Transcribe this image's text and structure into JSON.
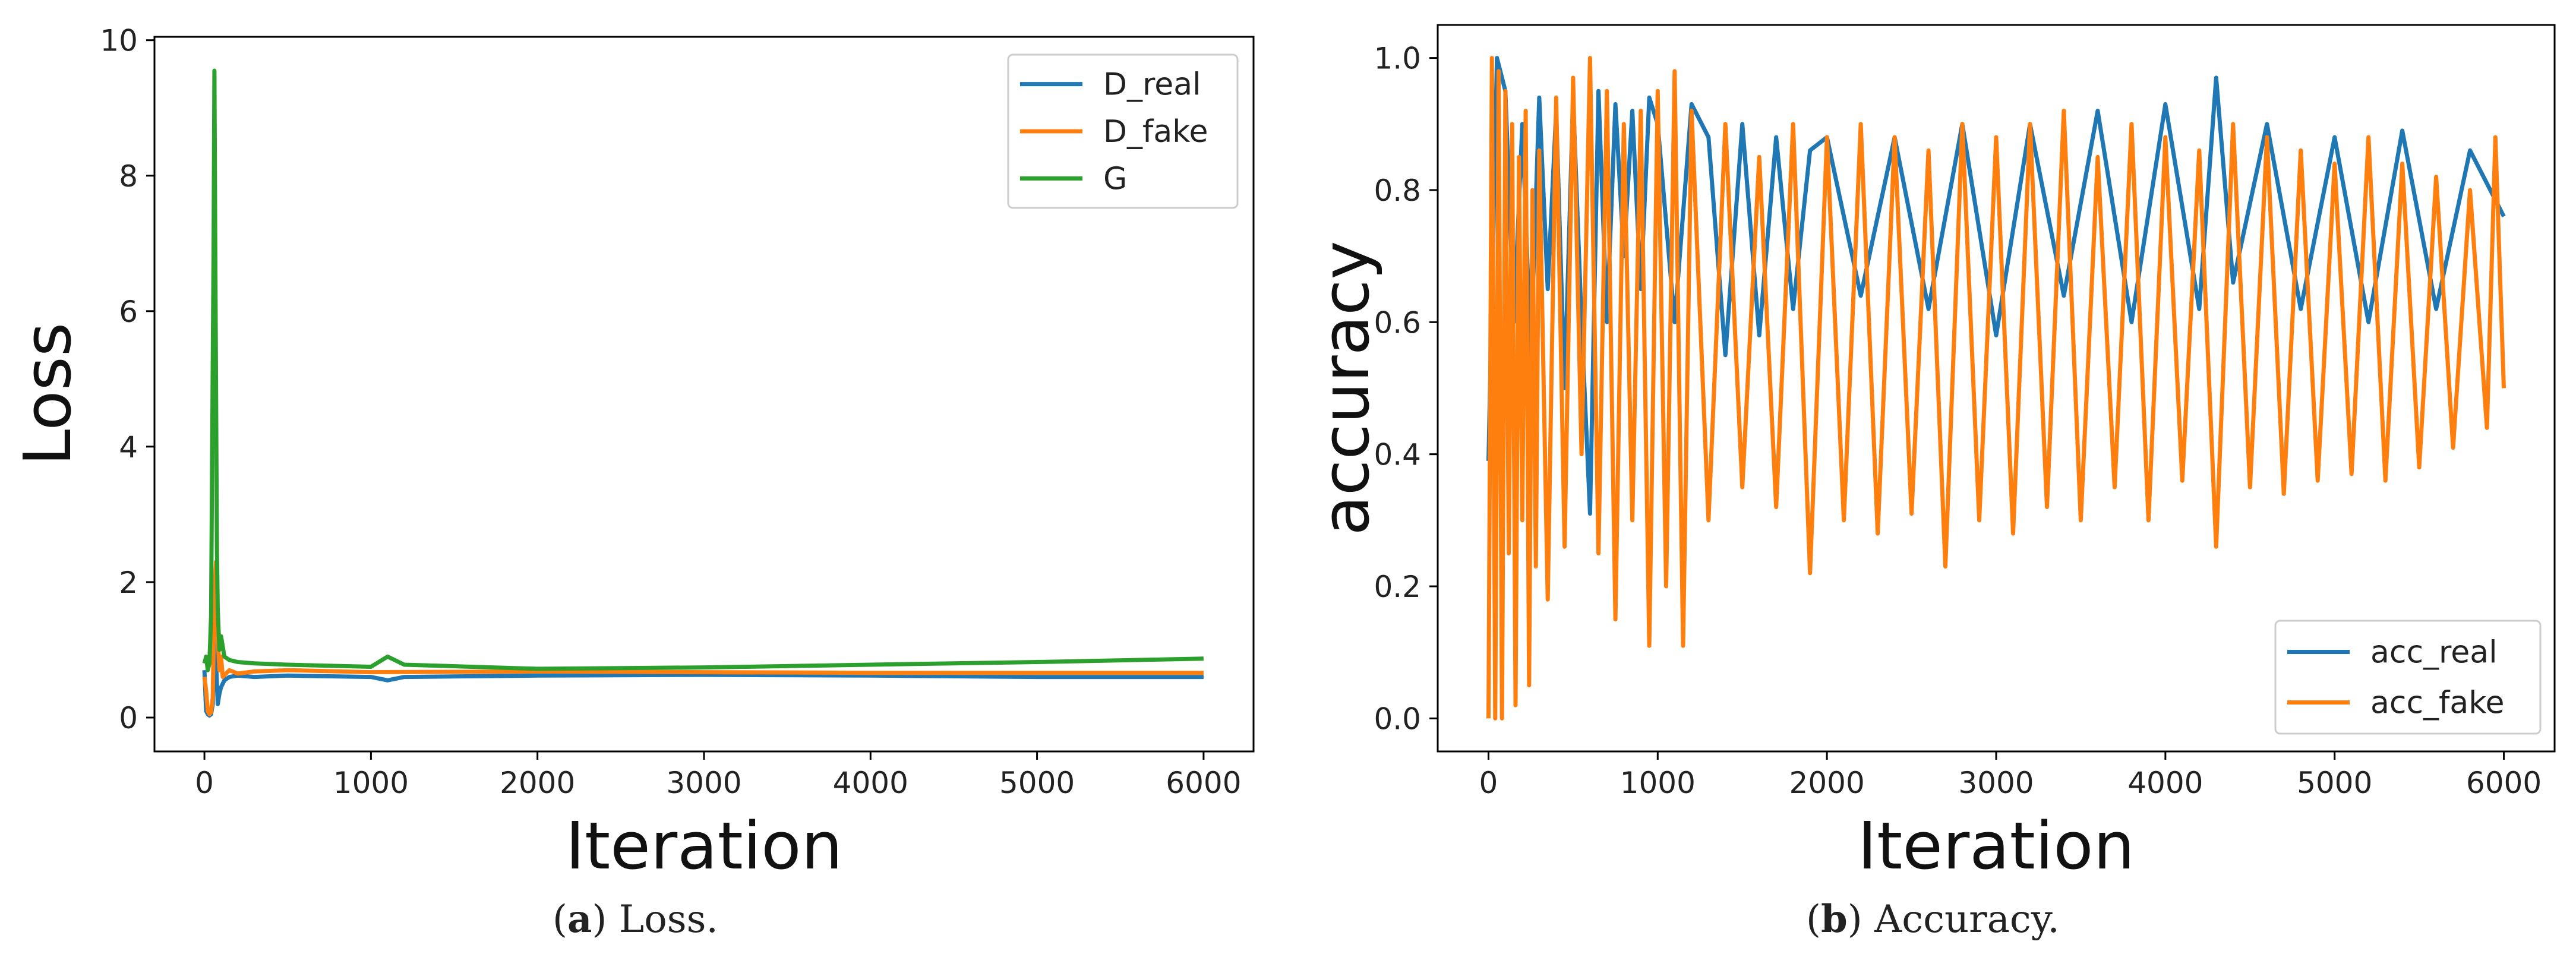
{
  "chart_data": [
    {
      "id": "loss",
      "type": "line",
      "xlabel": "Iteration",
      "ylabel": "Loss",
      "xlim": [
        -300,
        6300
      ],
      "ylim": [
        -0.5,
        10.05
      ],
      "xticks": [
        0,
        1000,
        2000,
        3000,
        4000,
        5000,
        6000
      ],
      "xtick_labels": [
        "0",
        "1000",
        "2000",
        "3000",
        "4000",
        "5000",
        "6000"
      ],
      "yticks": [
        0,
        2,
        4,
        6,
        8,
        10
      ],
      "ytick_labels": [
        "0",
        "2",
        "4",
        "6",
        "8",
        "10"
      ],
      "legend": "top-right",
      "series": [
        {
          "name": "D_real",
          "color": "#1f77b4",
          "x": [
            0,
            10,
            20,
            30,
            40,
            50,
            60,
            70,
            80,
            90,
            100,
            120,
            150,
            200,
            300,
            500,
            1000,
            1100,
            1200,
            2000,
            3000,
            4000,
            5000,
            6000
          ],
          "y": [
            0.7,
            0.1,
            0.05,
            0.03,
            0.05,
            0.2,
            1.2,
            0.8,
            0.2,
            0.35,
            0.45,
            0.55,
            0.6,
            0.62,
            0.6,
            0.62,
            0.6,
            0.55,
            0.6,
            0.62,
            0.63,
            0.62,
            0.6,
            0.6
          ]
        },
        {
          "name": "D_fake",
          "color": "#ff7f0e",
          "x": [
            0,
            10,
            20,
            30,
            40,
            50,
            60,
            70,
            80,
            90,
            100,
            110,
            150,
            200,
            300,
            500,
            1000,
            2000,
            3000,
            4000,
            5000,
            6000
          ],
          "y": [
            0.6,
            0.4,
            0.1,
            0.05,
            0.08,
            0.3,
            1.8,
            2.3,
            1.2,
            0.7,
            0.9,
            0.6,
            0.7,
            0.65,
            0.68,
            0.7,
            0.67,
            0.68,
            0.67,
            0.66,
            0.66,
            0.66
          ]
        },
        {
          "name": "G",
          "color": "#2ca02c",
          "x": [
            0,
            10,
            20,
            30,
            40,
            50,
            55,
            60,
            65,
            70,
            75,
            80,
            90,
            100,
            120,
            150,
            200,
            300,
            500,
            1000,
            1100,
            1200,
            2000,
            3000,
            4000,
            5000,
            6000
          ],
          "y": [
            0.8,
            0.9,
            0.7,
            0.8,
            1.5,
            5.2,
            6.9,
            9.55,
            7.0,
            4.8,
            2.5,
            1.6,
            1.0,
            1.2,
            0.9,
            0.85,
            0.82,
            0.8,
            0.78,
            0.75,
            0.9,
            0.78,
            0.72,
            0.74,
            0.78,
            0.82,
            0.87
          ]
        }
      ]
    },
    {
      "id": "accuracy",
      "type": "line",
      "xlabel": "Iteration",
      "ylabel": "accuracy",
      "xlim": [
        -300,
        6300
      ],
      "ylim": [
        -0.05,
        1.05
      ],
      "xticks": [
        0,
        1000,
        2000,
        3000,
        4000,
        5000,
        6000
      ],
      "xtick_labels": [
        "0",
        "1000",
        "2000",
        "3000",
        "4000",
        "5000",
        "6000"
      ],
      "yticks": [
        0.0,
        0.2,
        0.4,
        0.6,
        0.8,
        1.0
      ],
      "ytick_labels": [
        "0.0",
        "0.2",
        "0.4",
        "0.6",
        "0.8",
        "1.0"
      ],
      "legend": "bottom-right",
      "series": [
        {
          "name": "acc_real",
          "color": "#1f77b4",
          "x": [
            0,
            50,
            100,
            150,
            200,
            250,
            300,
            350,
            400,
            450,
            500,
            550,
            600,
            650,
            700,
            750,
            800,
            850,
            900,
            950,
            1000,
            1100,
            1200,
            1300,
            1400,
            1500,
            1600,
            1700,
            1800,
            1900,
            2000,
            2200,
            2400,
            2600,
            2800,
            3000,
            3200,
            3400,
            3600,
            3800,
            4000,
            4200,
            4300,
            4400,
            4600,
            4800,
            5000,
            5200,
            5400,
            5600,
            5800,
            6000
          ],
          "y": [
            0.39,
            1.0,
            0.95,
            0.6,
            0.9,
            0.55,
            0.94,
            0.65,
            0.92,
            0.5,
            0.94,
            0.6,
            0.31,
            0.95,
            0.6,
            0.93,
            0.7,
            0.92,
            0.65,
            0.94,
            0.9,
            0.6,
            0.93,
            0.88,
            0.55,
            0.9,
            0.58,
            0.88,
            0.62,
            0.86,
            0.88,
            0.64,
            0.88,
            0.62,
            0.9,
            0.58,
            0.9,
            0.64,
            0.92,
            0.6,
            0.93,
            0.62,
            0.97,
            0.66,
            0.9,
            0.62,
            0.88,
            0.6,
            0.89,
            0.62,
            0.86,
            0.76
          ]
        },
        {
          "name": "acc_fake",
          "color": "#ff7f0e",
          "x": [
            0,
            20,
            40,
            60,
            80,
            100,
            120,
            140,
            160,
            180,
            200,
            220,
            240,
            260,
            280,
            300,
            350,
            400,
            450,
            500,
            550,
            600,
            650,
            700,
            750,
            800,
            850,
            900,
            950,
            1000,
            1050,
            1100,
            1150,
            1200,
            1300,
            1400,
            1500,
            1600,
            1700,
            1800,
            1900,
            2000,
            2100,
            2200,
            2300,
            2400,
            2500,
            2600,
            2700,
            2800,
            2900,
            3000,
            3100,
            3200,
            3300,
            3400,
            3500,
            3600,
            3700,
            3800,
            3900,
            4000,
            4100,
            4200,
            4300,
            4400,
            4500,
            4600,
            4700,
            4800,
            4900,
            5000,
            5100,
            5200,
            5300,
            5400,
            5500,
            5600,
            5700,
            5800,
            5900,
            5950,
            6000
          ],
          "y": [
            0.0,
            1.0,
            0.0,
            0.98,
            0.0,
            0.95,
            0.25,
            0.9,
            0.02,
            0.85,
            0.3,
            0.92,
            0.05,
            0.8,
            0.23,
            0.86,
            0.18,
            0.94,
            0.26,
            0.97,
            0.4,
            1.0,
            0.25,
            0.95,
            0.15,
            0.9,
            0.3,
            0.92,
            0.11,
            0.95,
            0.2,
            0.98,
            0.11,
            0.92,
            0.3,
            0.9,
            0.35,
            0.85,
            0.32,
            0.9,
            0.22,
            0.88,
            0.3,
            0.9,
            0.28,
            0.88,
            0.31,
            0.86,
            0.23,
            0.9,
            0.3,
            0.88,
            0.28,
            0.9,
            0.32,
            0.92,
            0.3,
            0.85,
            0.35,
            0.9,
            0.3,
            0.88,
            0.36,
            0.86,
            0.26,
            0.9,
            0.35,
            0.88,
            0.34,
            0.86,
            0.36,
            0.84,
            0.37,
            0.88,
            0.36,
            0.84,
            0.38,
            0.82,
            0.41,
            0.8,
            0.44,
            0.88,
            0.5
          ]
        }
      ]
    }
  ],
  "captions": [
    {
      "label": "a",
      "text": "Loss."
    },
    {
      "label": "b",
      "text": "Accuracy."
    }
  ]
}
